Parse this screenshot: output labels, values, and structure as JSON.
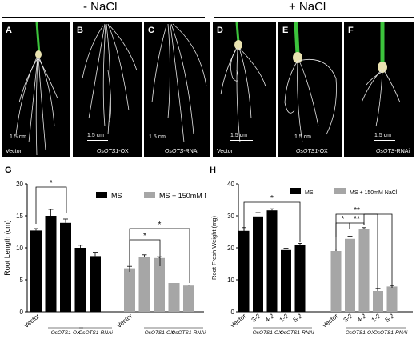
{
  "header": {
    "minus_nacl": "- NaCl",
    "plus_nacl": "+ NaCl"
  },
  "photo_panels": [
    {
      "letter": "A",
      "scale": "1.5 cm",
      "caption_plain": "Vector",
      "caption_italic": ""
    },
    {
      "letter": "B",
      "scale": "1.5 cm",
      "caption_plain": "-OX",
      "caption_italic": "OsOTS1"
    },
    {
      "letter": "C",
      "scale": "1.5 cm",
      "caption_plain": "-RNAi",
      "caption_italic": "OsOTS"
    },
    {
      "letter": "D",
      "scale": "1.5 cm",
      "caption_plain": "Vector",
      "caption_italic": ""
    },
    {
      "letter": "E",
      "scale": "1.5 cm",
      "caption_plain": "-OX",
      "caption_italic": "OsOTS1"
    },
    {
      "letter": "F",
      "scale": "1.5 cm",
      "caption_plain": "-RNAi",
      "caption_italic": "OsOTS"
    }
  ],
  "colors": {
    "ms": "#000000",
    "nacl": "#a6a6a6",
    "root": "#e8e8e8",
    "leaf": "#3cc43c"
  },
  "chart_data": [
    {
      "letter": "G",
      "type": "bar",
      "ylabel": "Root Length (cm)",
      "ylim": [
        0,
        20
      ],
      "yticks": [
        0,
        5,
        10,
        15,
        20
      ],
      "legend": [
        "MS",
        "MS + 150mM NaCl"
      ],
      "series": [
        {
          "name": "MS",
          "values": [
            12.7,
            15.0,
            13.9,
            10.0,
            8.7
          ],
          "errors": [
            0.3,
            1.0,
            0.6,
            0.4,
            0.6
          ]
        },
        {
          "name": "MS + 150mM NaCl",
          "values": [
            6.8,
            8.5,
            8.4,
            4.5,
            4.1
          ],
          "errors": [
            0.3,
            0.4,
            0.2,
            0.3,
            0.1
          ]
        }
      ],
      "x_tick_labels": [
        "Vector",
        "Vector"
      ],
      "group_labels": [
        "OsOTS1-OX",
        "OsOTS1-RNAi",
        "OsOTS1-OX",
        "OsOTS1-RNAi"
      ],
      "significance": [
        "*",
        "*",
        "*"
      ]
    },
    {
      "letter": "H",
      "type": "bar",
      "ylabel": "Root Fresh Weight (mg)",
      "ylim": [
        0,
        40
      ],
      "yticks": [
        0,
        10,
        20,
        30,
        40
      ],
      "legend": [
        "MS",
        "MS + 150mM NaCl"
      ],
      "series": [
        {
          "name": "MS",
          "values": [
            25.3,
            29.8,
            31.7,
            19.3,
            20.8
          ],
          "errors": [
            1.0,
            1.2,
            0.5,
            0.6,
            0.6
          ]
        },
        {
          "name": "MS + 150mM NaCl",
          "values": [
            19.0,
            22.8,
            25.8,
            6.5,
            7.9
          ],
          "errors": [
            0.6,
            0.8,
            0.5,
            0.8,
            0.3
          ]
        }
      ],
      "x_tick_labels": [
        "Vector",
        "3-2",
        "4-2",
        "1-2",
        "5-2",
        "Vector",
        "3-2",
        "4-2",
        "1-2",
        "5-2"
      ],
      "group_labels": [
        "OsOTS1-OX",
        "OsOTS1-RNAi",
        "OsOTS1-OX",
        "OsOTS1-RNAi"
      ],
      "significance": [
        "*",
        "*",
        "**",
        "**"
      ]
    }
  ]
}
